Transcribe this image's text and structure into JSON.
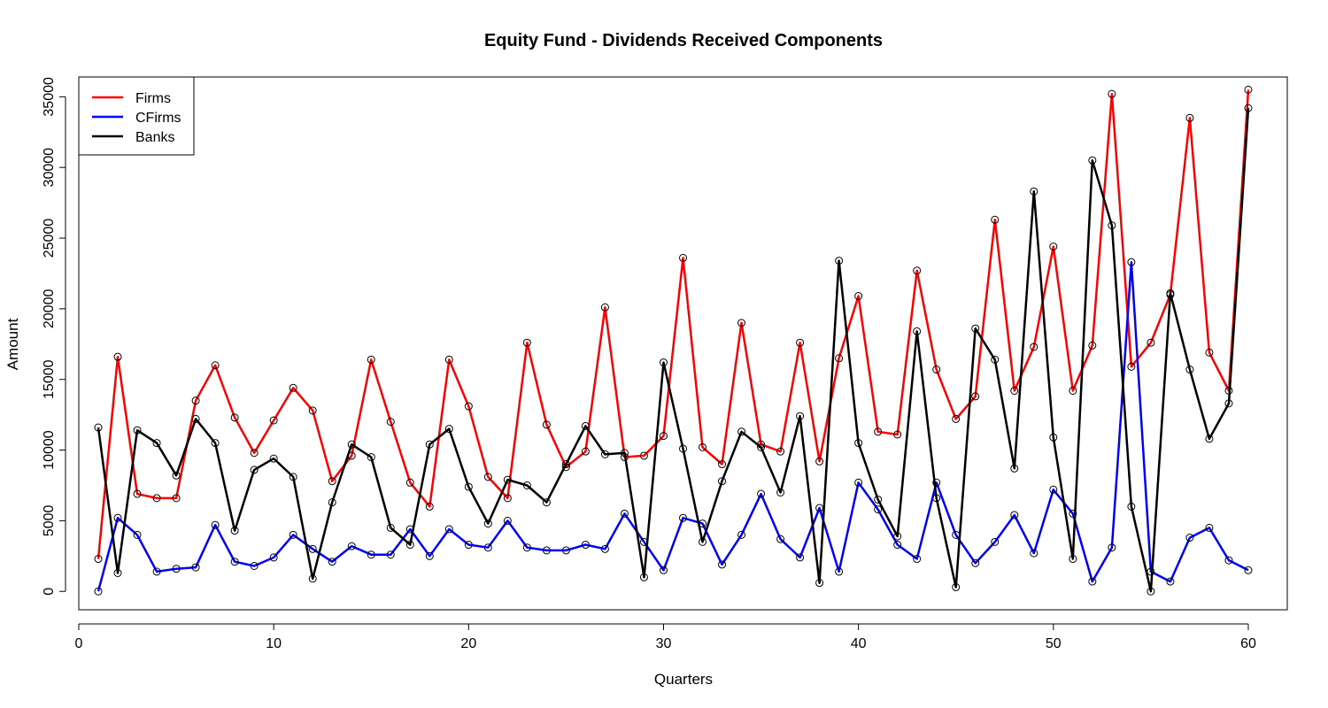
{
  "chart_data": {
    "type": "line",
    "title": "Equity Fund - Dividends Received Components",
    "xlabel": "Quarters",
    "ylabel": "Amount",
    "xlim": [
      0,
      62
    ],
    "ylim": [
      -1300,
      36400
    ],
    "x_ticks": [
      0,
      10,
      20,
      30,
      40,
      50,
      60
    ],
    "y_ticks": [
      0,
      5000,
      10000,
      15000,
      20000,
      25000,
      30000,
      35000
    ],
    "grid": false,
    "legend_position": "top-left",
    "marker": "open-circle",
    "x": [
      1,
      2,
      3,
      4,
      5,
      6,
      7,
      8,
      9,
      10,
      11,
      12,
      13,
      14,
      15,
      16,
      17,
      18,
      19,
      20,
      21,
      22,
      23,
      24,
      25,
      26,
      27,
      28,
      29,
      30,
      31,
      32,
      33,
      34,
      35,
      36,
      37,
      38,
      39,
      40,
      41,
      42,
      43,
      44,
      45,
      46,
      47,
      48,
      49,
      50,
      51,
      52,
      53,
      54,
      55,
      56,
      57,
      58,
      59,
      60
    ],
    "series": [
      {
        "name": "Firms",
        "color": "#ff0000",
        "values": [
          2300,
          16600,
          6900,
          6600,
          6600,
          13500,
          16000,
          12300,
          9800,
          12100,
          14400,
          12800,
          7800,
          9600,
          16400,
          12000,
          7700,
          6000,
          16400,
          13100,
          8100,
          6600,
          17600,
          11800,
          8800,
          9900,
          20100,
          9500,
          9600,
          11000,
          23600,
          10200,
          9000,
          19000,
          10400,
          9900,
          17600,
          9200,
          16500,
          20900,
          11300,
          11100,
          22700,
          15700,
          12200,
          13800,
          26300,
          14200,
          17300,
          24400,
          14200,
          17400,
          35200,
          15900,
          17600,
          21000,
          33500,
          16900,
          14200,
          35500
        ]
      },
      {
        "name": "CFirms",
        "color": "#0000ff",
        "values": [
          0,
          5200,
          4000,
          1400,
          1600,
          1700,
          4700,
          2100,
          1800,
          2400,
          4000,
          3000,
          2100,
          3200,
          2600,
          2600,
          4400,
          2500,
          4400,
          3300,
          3100,
          5000,
          3100,
          2900,
          2900,
          3300,
          3000,
          5500,
          3500,
          1500,
          5200,
          4800,
          1900,
          4000,
          6900,
          3700,
          2400,
          5900,
          1400,
          7700,
          5800,
          3300,
          2300,
          7700,
          4000,
          2000,
          3500,
          5400,
          2700,
          7200,
          5500,
          700,
          3100,
          23300,
          1400,
          700,
          3800,
          4500,
          2200,
          1500
        ]
      },
      {
        "name": "Banks",
        "color": "#000000",
        "values": [
          11600,
          1300,
          11400,
          10500,
          8200,
          12200,
          10500,
          4300,
          8600,
          9400,
          8100,
          900,
          6300,
          10400,
          9500,
          4500,
          3300,
          10400,
          11500,
          7400,
          4800,
          7900,
          7500,
          6300,
          9000,
          11700,
          9700,
          9800,
          1000,
          16200,
          10100,
          3500,
          7800,
          11300,
          10200,
          7000,
          12400,
          600,
          23400,
          10500,
          6500,
          3900,
          18400,
          6600,
          300,
          18600,
          16400,
          8700,
          28300,
          10900,
          2300,
          30500,
          25900,
          6000,
          0,
          21100,
          15700,
          10800,
          13300,
          34200
        ]
      }
    ]
  }
}
